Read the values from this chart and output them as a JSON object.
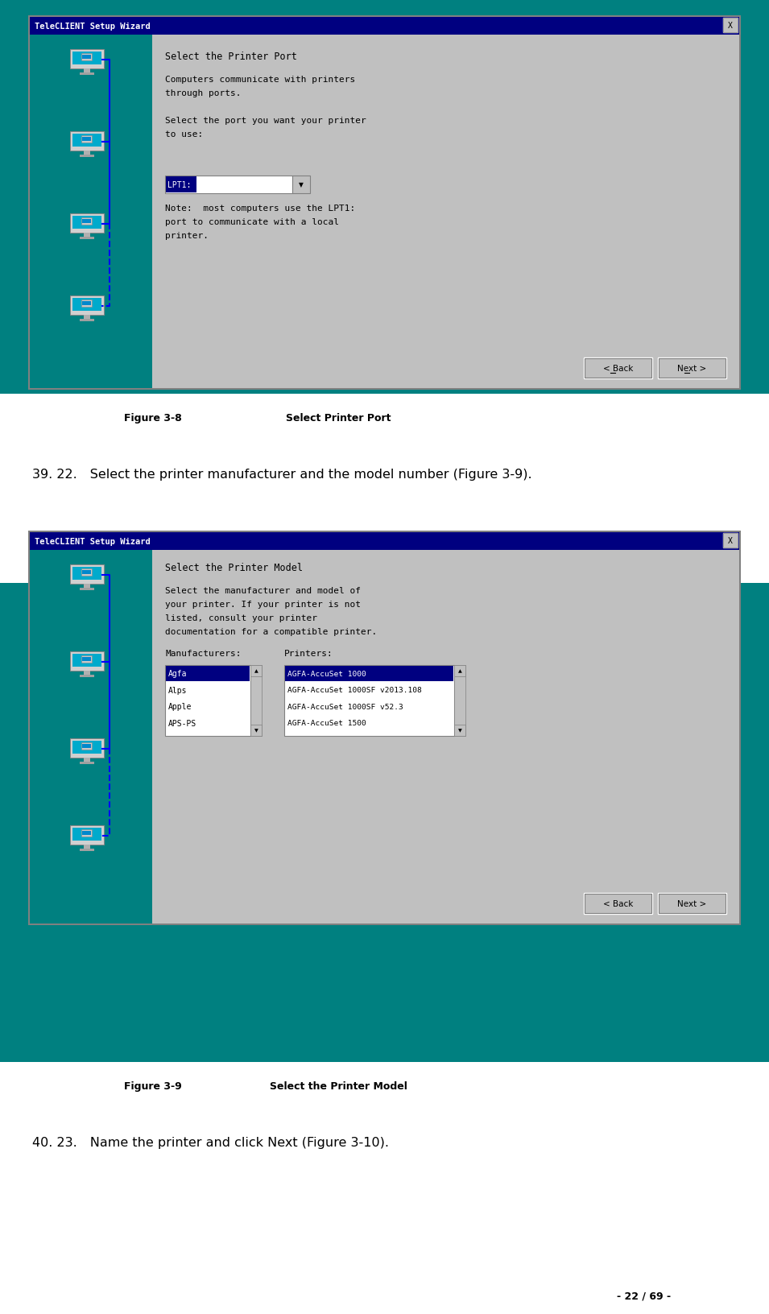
{
  "bg_color": "#008080",
  "white_bg": "#ffffff",
  "dialog_bg": "#c0c0c0",
  "dialog_title_bg": "#000080",
  "dialog_title_color": "#ffffff",
  "teal_panel": "#008080",
  "fig_width": 9.55,
  "fig_height": 16.33,
  "dialog1": {
    "title": "TeleCLIENT Setup Wizard",
    "heading": "Select the Printer Port",
    "body_lines": [
      "Computers communicate with printers",
      "through ports.",
      "",
      "Select the port you want your printer",
      "to use:"
    ],
    "dropdown_label": "LPT1:",
    "note_lines": [
      "Note:  most computers use the LPT1:",
      "port to communicate with a local",
      "printer."
    ]
  },
  "fig8_label": "Figure 3-8",
  "fig8_title": "Select Printer Port",
  "para1_text": "39. 22. Select the printer manufacturer and the model number (Figure 3-9).",
  "dialog2": {
    "title": "TeleCLIENT Setup Wizard",
    "heading": "Select the Printer Model",
    "body_lines": [
      "Select the manufacturer and model of",
      "your printer. If your printer is not",
      "listed, consult your printer",
      "documentation for a compatible printer."
    ],
    "mfr_label": "Manufacturers:",
    "prn_label": "Printers:",
    "manufacturers": [
      "Agfa",
      "Alps",
      "Apple",
      "APS-PS"
    ],
    "printers": [
      "AGFA-AccuSet 1000",
      "AGFA-AccuSet 1000SF v2013.108",
      "AGFA-AccuSet 1000SF v52.3",
      "AGFA-AccuSet 1500"
    ],
    "selected_mfr": "Agfa",
    "selected_prn": "AGFA-AccuSet 1000"
  },
  "fig9_label": "Figure 3-9",
  "fig9_title": "Select the Printer Model",
  "para2_text": "40. 23. Name the printer and click Next (Figure 3‑10).",
  "page_text": "- 22 / 69 -"
}
